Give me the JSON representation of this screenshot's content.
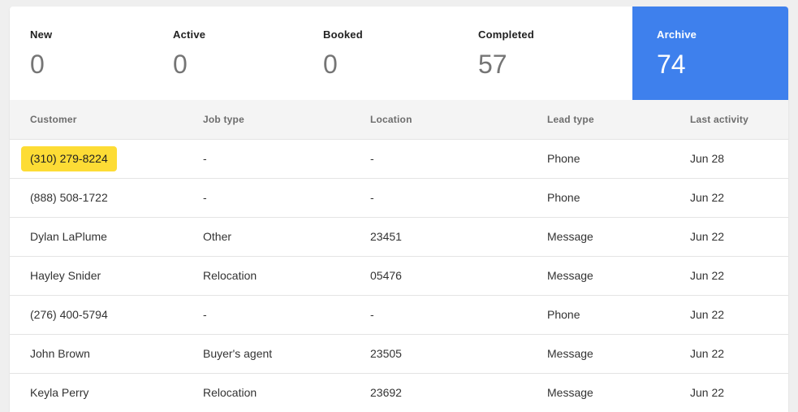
{
  "tabs": [
    {
      "label": "New",
      "count": "0",
      "active": false
    },
    {
      "label": "Active",
      "count": "0",
      "active": false
    },
    {
      "label": "Booked",
      "count": "0",
      "active": false
    },
    {
      "label": "Completed",
      "count": "57",
      "active": false
    },
    {
      "label": "Archive",
      "count": "74",
      "active": true
    }
  ],
  "table": {
    "columns": [
      "Customer",
      "Job type",
      "Location",
      "Lead type",
      "Last activity"
    ],
    "rows": [
      {
        "customer": "(310) 279-8224",
        "highlighted": true,
        "job_type": "-",
        "location": "-",
        "lead_type": "Phone",
        "last_activity": "Jun 28"
      },
      {
        "customer": "(888) 508-1722",
        "highlighted": false,
        "job_type": "-",
        "location": "-",
        "lead_type": "Phone",
        "last_activity": "Jun 22"
      },
      {
        "customer": "Dylan LaPlume",
        "highlighted": false,
        "job_type": "Other",
        "location": "23451",
        "lead_type": "Message",
        "last_activity": "Jun 22"
      },
      {
        "customer": "Hayley Snider",
        "highlighted": false,
        "job_type": "Relocation",
        "location": "05476",
        "lead_type": "Message",
        "last_activity": "Jun 22"
      },
      {
        "customer": "(276) 400-5794",
        "highlighted": false,
        "job_type": "-",
        "location": "-",
        "lead_type": "Phone",
        "last_activity": "Jun 22"
      },
      {
        "customer": "John Brown",
        "highlighted": false,
        "job_type": "Buyer's agent",
        "location": "23505",
        "lead_type": "Message",
        "last_activity": "Jun 22"
      },
      {
        "customer": "Keyla Perry",
        "highlighted": false,
        "job_type": "Relocation",
        "location": "23692",
        "lead_type": "Message",
        "last_activity": "Jun 22"
      }
    ]
  },
  "colors": {
    "active_tab_bg": "#3e80ed",
    "highlight_bg": "#fddc35",
    "page_bg": "#efefef",
    "header_bg": "#f4f4f4"
  }
}
